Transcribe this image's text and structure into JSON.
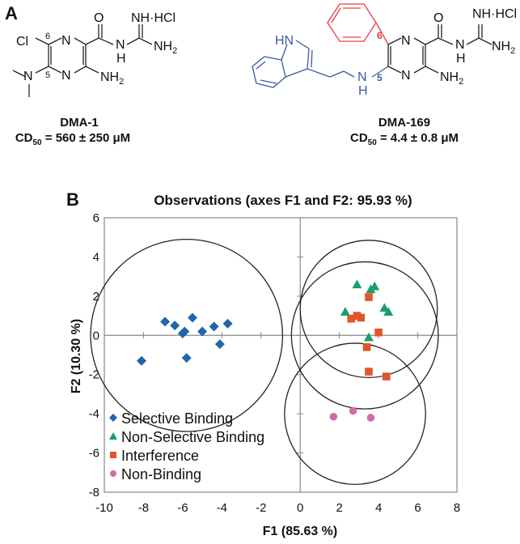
{
  "panel_a": {
    "label": "A",
    "compounds": [
      {
        "name": "DMA-1",
        "cd50": "CD50 = 560 ± 250 μM",
        "cd50_prefix": "CD",
        "cd50_sub": "50",
        "cd50_value": " = 560 ± 250 μM",
        "substituents": {
          "position_6": "Cl",
          "position_5": "N(CH3)2"
        },
        "atom_labels": [
          "Cl",
          "6",
          "5",
          "N",
          "N",
          "N",
          "O",
          "NH·HCl",
          "NH2",
          "NH2",
          "H"
        ]
      },
      {
        "name": "DMA-169",
        "cd50": "CD50 = 4.4 ± 0.8 μM",
        "cd50_prefix": "CD",
        "cd50_sub": "50",
        "cd50_value": " = 4.4 ± 0.8 μM",
        "substituents": {
          "position_6": "phenyl",
          "position_5": "2-(indol-3-yl)ethylamino"
        },
        "atom_labels": [
          "HN",
          "6",
          "5",
          "N",
          "N",
          "N",
          "H",
          "O",
          "NH·HCl",
          "NH2",
          "NH2",
          "H"
        ],
        "highlight_colors": {
          "position_6": "#e0413a",
          "position_5": "#3f56a8"
        }
      }
    ]
  },
  "panel_b": {
    "label": "B"
  },
  "chart_data": {
    "type": "scatter",
    "title": "Observations (axes F1 and F2: 95.93 %)",
    "xlabel": "F1 (85.63 %)",
    "ylabel": "F2 (10.30 %)",
    "xlim": [
      -10,
      8
    ],
    "ylim": [
      -8,
      6
    ],
    "xticks": [
      -10,
      -8,
      -6,
      -4,
      -2,
      0,
      2,
      4,
      6,
      8
    ],
    "yticks": [
      6,
      4,
      2,
      0,
      -2,
      -4,
      -6,
      -8
    ],
    "grid": false,
    "zero_lines": true,
    "legend_position": "lower left (inside)",
    "series": [
      {
        "name": "Selective Binding",
        "marker": "diamond",
        "color": "#2166ac",
        "points": [
          [
            -6.9,
            0.7
          ],
          [
            -6.4,
            0.5
          ],
          [
            -5.5,
            0.9
          ],
          [
            -6.0,
            0.1
          ],
          [
            -5.9,
            0.2
          ],
          [
            -5.0,
            0.2
          ],
          [
            -4.4,
            0.45
          ],
          [
            -3.7,
            0.6
          ],
          [
            -4.1,
            -0.45
          ],
          [
            -5.8,
            -1.15
          ],
          [
            -8.1,
            -1.3
          ]
        ]
      },
      {
        "name": "Non-Selective Binding",
        "marker": "triangle",
        "color": "#1a9e6a",
        "points": [
          [
            2.9,
            2.6
          ],
          [
            3.6,
            2.35
          ],
          [
            3.8,
            2.5
          ],
          [
            2.3,
            1.2
          ],
          [
            4.3,
            1.4
          ],
          [
            4.5,
            1.2
          ],
          [
            3.5,
            -0.1
          ]
        ]
      },
      {
        "name": "Interference",
        "marker": "square",
        "color": "#e0552a",
        "points": [
          [
            3.5,
            1.95
          ],
          [
            2.6,
            0.85
          ],
          [
            2.9,
            1.0
          ],
          [
            3.1,
            0.9
          ],
          [
            4.0,
            0.15
          ],
          [
            3.4,
            -0.6
          ],
          [
            3.5,
            -1.85
          ],
          [
            4.4,
            -2.1
          ]
        ]
      },
      {
        "name": "Non-Binding",
        "marker": "circle",
        "color": "#d46aa8",
        "points": [
          [
            1.7,
            -4.15
          ],
          [
            2.7,
            -3.85
          ],
          [
            3.6,
            -4.2
          ]
        ]
      }
    ],
    "confidence_circles": [
      {
        "group": "Selective Binding",
        "center": [
          -5.8,
          0.0
        ],
        "radius": 4.9
      },
      {
        "group": "Non-Selective Binding",
        "center": [
          3.5,
          1.35
        ],
        "radius": 3.5
      },
      {
        "group": "Interference",
        "center": [
          3.3,
          0.0
        ],
        "radius": 3.75
      },
      {
        "group": "Non-Binding",
        "center": [
          2.8,
          -4.0
        ],
        "radius": 3.6
      }
    ]
  }
}
